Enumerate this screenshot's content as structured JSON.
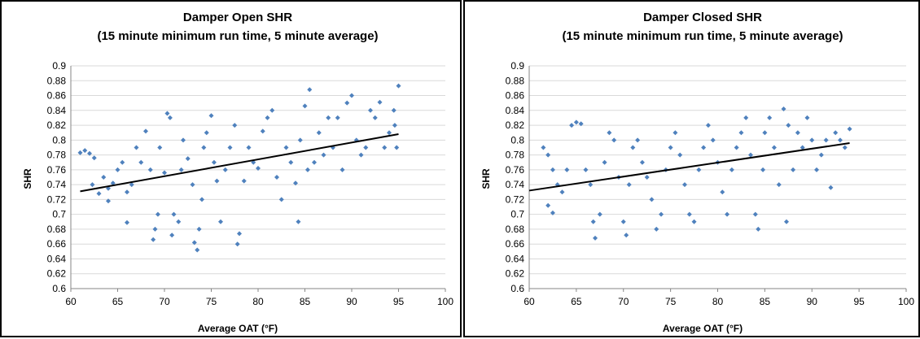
{
  "chart_data": [
    {
      "type": "scatter",
      "title_line1": "Damper Open SHR",
      "title_line2": "(15 minute minimum run time, 5 minute average)",
      "xlabel": "Average OAT (°F)",
      "ylabel": "SHR",
      "xlim": [
        60,
        100
      ],
      "ylim": [
        0.6,
        0.9
      ],
      "x_ticks": [
        "60",
        "65",
        "70",
        "75",
        "80",
        "85",
        "90",
        "95",
        "100"
      ],
      "y_ticks": [
        "0.6",
        "0.62",
        "0.64",
        "0.66",
        "0.68",
        "0.7",
        "0.72",
        "0.74",
        "0.76",
        "0.78",
        "0.8",
        "0.82",
        "0.84",
        "0.86",
        "0.88",
        "0.9"
      ],
      "grid": "horizontal",
      "marker_color": "#4f81bd",
      "trend_color": "#000000",
      "trendline": {
        "x": [
          61,
          95
        ],
        "y": [
          0.731,
          0.808
        ]
      },
      "series": [
        {
          "points": [
            [
              61.0,
              0.783
            ],
            [
              61.5,
              0.786
            ],
            [
              62.0,
              0.782
            ],
            [
              62.5,
              0.776
            ],
            [
              62.3,
              0.74
            ],
            [
              63.0,
              0.728
            ],
            [
              63.5,
              0.75
            ],
            [
              64.0,
              0.735
            ],
            [
              64.5,
              0.742
            ],
            [
              64.0,
              0.718
            ],
            [
              65.0,
              0.76
            ],
            [
              65.5,
              0.77
            ],
            [
              66.0,
              0.73
            ],
            [
              66.5,
              0.74
            ],
            [
              66.0,
              0.689
            ],
            [
              67.0,
              0.79
            ],
            [
              67.5,
              0.77
            ],
            [
              68.0,
              0.812
            ],
            [
              68.5,
              0.76
            ],
            [
              68.8,
              0.666
            ],
            [
              69.0,
              0.68
            ],
            [
              69.3,
              0.7
            ],
            [
              69.5,
              0.79
            ],
            [
              70.0,
              0.756
            ],
            [
              70.3,
              0.836
            ],
            [
              70.6,
              0.83
            ],
            [
              70.8,
              0.672
            ],
            [
              71.0,
              0.7
            ],
            [
              71.5,
              0.69
            ],
            [
              71.8,
              0.76
            ],
            [
              72.0,
              0.8
            ],
            [
              72.5,
              0.775
            ],
            [
              73.0,
              0.74
            ],
            [
              73.2,
              0.662
            ],
            [
              73.5,
              0.652
            ],
            [
              73.7,
              0.68
            ],
            [
              74.0,
              0.72
            ],
            [
              74.2,
              0.79
            ],
            [
              74.5,
              0.81
            ],
            [
              75.0,
              0.833
            ],
            [
              75.3,
              0.77
            ],
            [
              75.6,
              0.745
            ],
            [
              76.0,
              0.69
            ],
            [
              76.5,
              0.76
            ],
            [
              77.0,
              0.79
            ],
            [
              77.5,
              0.82
            ],
            [
              77.8,
              0.66
            ],
            [
              78.0,
              0.674
            ],
            [
              78.5,
              0.745
            ],
            [
              79.0,
              0.79
            ],
            [
              79.5,
              0.77
            ],
            [
              80.0,
              0.762
            ],
            [
              80.5,
              0.812
            ],
            [
              81.0,
              0.83
            ],
            [
              81.5,
              0.84
            ],
            [
              82.0,
              0.75
            ],
            [
              82.5,
              0.72
            ],
            [
              83.0,
              0.79
            ],
            [
              83.5,
              0.77
            ],
            [
              84.0,
              0.742
            ],
            [
              84.3,
              0.69
            ],
            [
              84.5,
              0.8
            ],
            [
              85.0,
              0.846
            ],
            [
              85.5,
              0.868
            ],
            [
              85.3,
              0.76
            ],
            [
              86.0,
              0.77
            ],
            [
              86.5,
              0.81
            ],
            [
              87.0,
              0.78
            ],
            [
              87.5,
              0.83
            ],
            [
              88.0,
              0.79
            ],
            [
              88.5,
              0.83
            ],
            [
              89.0,
              0.76
            ],
            [
              89.5,
              0.85
            ],
            [
              90.0,
              0.86
            ],
            [
              90.5,
              0.8
            ],
            [
              91.0,
              0.78
            ],
            [
              91.5,
              0.79
            ],
            [
              92.0,
              0.84
            ],
            [
              92.5,
              0.83
            ],
            [
              93.0,
              0.851
            ],
            [
              93.5,
              0.79
            ],
            [
              94.0,
              0.81
            ],
            [
              94.5,
              0.84
            ],
            [
              95.0,
              0.873
            ],
            [
              94.8,
              0.79
            ],
            [
              94.6,
              0.82
            ]
          ]
        }
      ]
    },
    {
      "type": "scatter",
      "title_line1": "Damper Closed SHR",
      "title_line2": "(15 minute minimum run time, 5 minute average)",
      "xlabel": "Average OAT (°F)",
      "ylabel": "SHR",
      "xlim": [
        60,
        100
      ],
      "ylim": [
        0.6,
        0.9
      ],
      "x_ticks": [
        "60",
        "65",
        "70",
        "75",
        "80",
        "85",
        "90",
        "95",
        "100"
      ],
      "y_ticks": [
        "0.6",
        "0.62",
        "0.64",
        "0.66",
        "0.68",
        "0.7",
        "0.72",
        "0.74",
        "0.76",
        "0.78",
        "0.8",
        "0.82",
        "0.84",
        "0.86",
        "0.88",
        "0.9"
      ],
      "grid": "horizontal",
      "marker_color": "#4f81bd",
      "trend_color": "#000000",
      "trendline": {
        "x": [
          60,
          94
        ],
        "y": [
          0.732,
          0.796
        ]
      },
      "series": [
        {
          "points": [
            [
              61.5,
              0.79
            ],
            [
              62.0,
              0.78
            ],
            [
              62.5,
              0.76
            ],
            [
              63.0,
              0.74
            ],
            [
              62.0,
              0.712
            ],
            [
              62.5,
              0.702
            ],
            [
              63.5,
              0.73
            ],
            [
              64.0,
              0.76
            ],
            [
              64.5,
              0.82
            ],
            [
              65.0,
              0.824
            ],
            [
              65.5,
              0.822
            ],
            [
              66.0,
              0.76
            ],
            [
              66.5,
              0.74
            ],
            [
              66.8,
              0.69
            ],
            [
              67.0,
              0.668
            ],
            [
              67.5,
              0.7
            ],
            [
              68.0,
              0.77
            ],
            [
              68.5,
              0.81
            ],
            [
              69.0,
              0.8
            ],
            [
              69.5,
              0.75
            ],
            [
              70.0,
              0.69
            ],
            [
              70.3,
              0.672
            ],
            [
              70.6,
              0.74
            ],
            [
              71.0,
              0.79
            ],
            [
              71.5,
              0.8
            ],
            [
              72.0,
              0.77
            ],
            [
              72.5,
              0.75
            ],
            [
              73.0,
              0.72
            ],
            [
              73.5,
              0.68
            ],
            [
              74.0,
              0.7
            ],
            [
              74.5,
              0.76
            ],
            [
              75.0,
              0.79
            ],
            [
              75.5,
              0.81
            ],
            [
              76.0,
              0.78
            ],
            [
              76.5,
              0.74
            ],
            [
              77.0,
              0.7
            ],
            [
              77.5,
              0.69
            ],
            [
              78.0,
              0.76
            ],
            [
              78.5,
              0.79
            ],
            [
              79.0,
              0.82
            ],
            [
              79.5,
              0.8
            ],
            [
              80.0,
              0.77
            ],
            [
              80.5,
              0.73
            ],
            [
              81.0,
              0.7
            ],
            [
              81.5,
              0.76
            ],
            [
              82.0,
              0.79
            ],
            [
              82.5,
              0.81
            ],
            [
              83.0,
              0.83
            ],
            [
              83.5,
              0.78
            ],
            [
              84.0,
              0.7
            ],
            [
              84.3,
              0.68
            ],
            [
              84.8,
              0.76
            ],
            [
              85.0,
              0.81
            ],
            [
              85.5,
              0.83
            ],
            [
              86.0,
              0.79
            ],
            [
              86.5,
              0.74
            ],
            [
              87.0,
              0.842
            ],
            [
              87.5,
              0.82
            ],
            [
              87.3,
              0.69
            ],
            [
              88.0,
              0.76
            ],
            [
              88.5,
              0.81
            ],
            [
              89.0,
              0.79
            ],
            [
              89.5,
              0.83
            ],
            [
              90.0,
              0.8
            ],
            [
              90.5,
              0.76
            ],
            [
              91.0,
              0.78
            ],
            [
              91.5,
              0.8
            ],
            [
              92.0,
              0.736
            ],
            [
              92.5,
              0.81
            ],
            [
              93.0,
              0.8
            ],
            [
              93.5,
              0.79
            ],
            [
              94.0,
              0.815
            ]
          ]
        }
      ]
    }
  ]
}
